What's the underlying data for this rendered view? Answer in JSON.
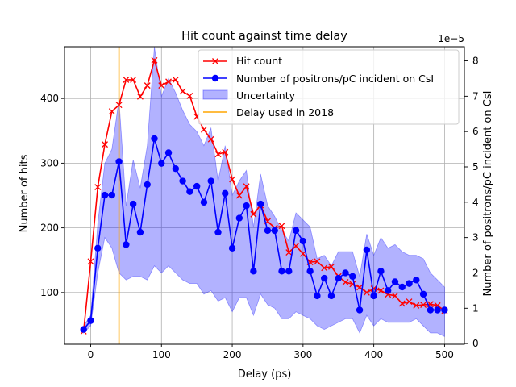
{
  "chart_data": {
    "type": "line",
    "title": "Hit count against time delay",
    "xlabel": "Delay (ps)",
    "ylabel": "Number of hits",
    "ylabel_right": "Number of positrons/pC incident on CsI",
    "right_axis_multiplier": "1e−5",
    "xlim": [
      -37,
      528
    ],
    "ylim": [
      20,
      480
    ],
    "ylim_right": [
      -0.02,
      8.4
    ],
    "x_ticks": [
      0,
      100,
      200,
      300,
      400,
      500
    ],
    "y_ticks": [
      100,
      200,
      300,
      400
    ],
    "y_ticks_right": [
      0,
      1,
      2,
      3,
      4,
      5,
      6,
      7,
      8
    ],
    "grid": true,
    "legend_position": "top-right",
    "vline": {
      "name": "Delay used in 2018",
      "x": 40,
      "color": "#ffa500"
    },
    "series": [
      {
        "name": "Hit count",
        "axis": "left",
        "color": "#ff0000",
        "marker": "x",
        "x": [
          -10,
          0,
          10,
          20,
          30,
          40,
          50,
          60,
          70,
          80,
          90,
          100,
          110,
          120,
          130,
          140,
          150,
          160,
          170,
          180,
          190,
          200,
          210,
          220,
          230,
          240,
          250,
          260,
          270,
          280,
          290,
          300,
          310,
          320,
          330,
          340,
          350,
          360,
          370,
          380,
          390,
          400,
          410,
          420,
          430,
          440,
          450,
          460,
          470,
          480,
          490,
          500
        ],
        "values": [
          40,
          148,
          263,
          329,
          380,
          390,
          429,
          429,
          403,
          420,
          459,
          420,
          426,
          429,
          411,
          404,
          372,
          352,
          337,
          314,
          317,
          275,
          250,
          264,
          221,
          235,
          210,
          200,
          203,
          162,
          172,
          160,
          147,
          148,
          138,
          140,
          125,
          116,
          113,
          108,
          100,
          106,
          103,
          97,
          95,
          83,
          86,
          80,
          81,
          82,
          80,
          72
        ]
      },
      {
        "name": "Number of positrons/pC incident on CsI",
        "axis": "right",
        "color": "#0000ff",
        "marker": "o",
        "x": [
          -10,
          0,
          10,
          20,
          30,
          40,
          50,
          60,
          70,
          80,
          90,
          100,
          110,
          120,
          130,
          140,
          150,
          160,
          170,
          180,
          190,
          200,
          210,
          220,
          230,
          240,
          250,
          260,
          270,
          280,
          290,
          300,
          310,
          320,
          330,
          340,
          350,
          360,
          370,
          380,
          390,
          400,
          410,
          420,
          430,
          440,
          450,
          460,
          470,
          480,
          490,
          500
        ],
        "values": [
          0.4,
          0.65,
          2.7,
          4.2,
          4.2,
          5.15,
          2.8,
          3.95,
          3.15,
          4.5,
          5.8,
          5.1,
          5.4,
          4.95,
          4.6,
          4.3,
          4.45,
          4.0,
          4.6,
          3.15,
          4.25,
          2.7,
          3.55,
          3.9,
          2.05,
          3.95,
          3.2,
          3.2,
          2.05,
          2.05,
          3.2,
          2.9,
          2.05,
          1.35,
          1.85,
          1.35,
          1.85,
          2.0,
          1.9,
          0.95,
          2.65,
          1.35,
          2.05,
          1.5,
          1.75,
          1.6,
          1.7,
          1.8,
          1.4,
          0.95,
          0.95,
          0.95
        ],
        "uncertainty_low": [
          0.3,
          0.5,
          2.0,
          3.0,
          2.7,
          2.0,
          1.8,
          1.9,
          1.9,
          1.8,
          2.2,
          2.0,
          2.2,
          2.0,
          1.8,
          1.7,
          1.7,
          1.4,
          1.5,
          1.2,
          1.3,
          0.9,
          1.3,
          1.3,
          0.8,
          1.4,
          1.1,
          1.0,
          0.7,
          0.7,
          0.9,
          0.8,
          0.7,
          0.5,
          0.4,
          0.5,
          0.6,
          0.7,
          0.7,
          0.3,
          0.8,
          0.5,
          0.7,
          0.6,
          0.6,
          0.6,
          0.6,
          0.7,
          0.5,
          0.3,
          0.3,
          0.2
        ],
        "uncertainty_high": [
          0.5,
          0.8,
          3.4,
          5.1,
          5.5,
          6.9,
          3.9,
          5.2,
          4.4,
          5.6,
          8.4,
          7.0,
          7.5,
          7.1,
          6.6,
          6.2,
          6.0,
          5.6,
          6.1,
          4.6,
          5.6,
          4.2,
          4.6,
          4.9,
          3.3,
          4.8,
          3.9,
          3.6,
          3.2,
          2.9,
          3.7,
          3.5,
          3.3,
          2.4,
          2.5,
          2.2,
          2.6,
          2.6,
          2.6,
          1.9,
          3.1,
          2.5,
          3.0,
          2.7,
          2.8,
          2.6,
          2.5,
          2.5,
          2.4,
          2.0,
          1.8,
          1.6
        ]
      }
    ],
    "uncertainty_band": {
      "name": "Uncertainty",
      "color": "#0000ff",
      "opacity": 0.3
    }
  }
}
